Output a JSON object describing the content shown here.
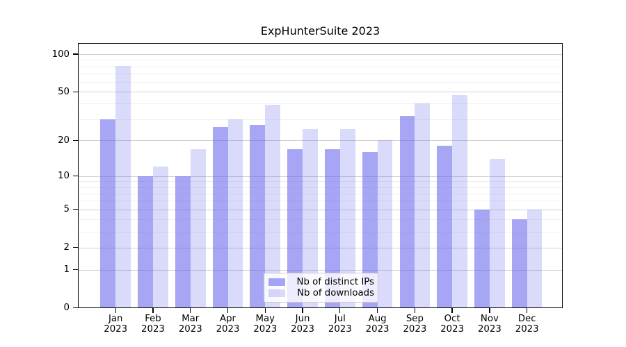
{
  "figure": {
    "title": "ExpHunterSuite 2023"
  },
  "legend": {
    "items": [
      {
        "label": "Nb of distinct IPs",
        "color": "rgba(102,102,238,0.58)"
      },
      {
        "label": "Nb of downloads",
        "color": "rgba(102,102,238,0.24)"
      }
    ]
  },
  "chart_data": {
    "type": "bar",
    "title": "ExpHunterSuite 2023",
    "categories": [
      "Jan",
      "Feb",
      "Mar",
      "Apr",
      "May",
      "Jun",
      "Jul",
      "Aug",
      "Sep",
      "Oct",
      "Nov",
      "Dec"
    ],
    "year": "2023",
    "series": [
      {
        "name": "Nb of distinct IPs",
        "color": "rgba(102,102,238,0.58)",
        "values": [
          30,
          10,
          10,
          26,
          27,
          17,
          17,
          16,
          32,
          18,
          5,
          4
        ]
      },
      {
        "name": "Nb of downloads",
        "color": "rgba(102,102,238,0.24)",
        "values": [
          81,
          12,
          17,
          30,
          39,
          25,
          25,
          20,
          40,
          47,
          14,
          5
        ]
      }
    ],
    "yscale": "log1p",
    "ylim": [
      0,
      100
    ],
    "yticks": [
      0,
      1,
      2,
      5,
      10,
      20,
      50,
      100
    ],
    "minor_yticks": [
      3,
      4,
      6,
      7,
      8,
      9,
      30,
      40,
      60,
      70,
      80,
      90
    ],
    "xlabel": "",
    "ylabel": "",
    "grid": "both",
    "legend_position": "lower center",
    "accent_color": "#6666ee"
  }
}
